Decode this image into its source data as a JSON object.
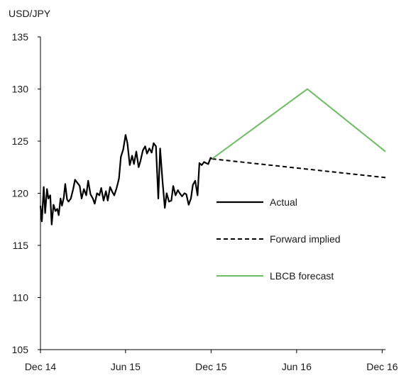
{
  "chart_data": {
    "type": "line",
    "unit_label": "USD/JPY",
    "y_ticks": [
      "135",
      "130",
      "125",
      "120",
      "115",
      "110",
      "105"
    ],
    "y_tick_values": [
      135,
      130,
      125,
      120,
      115,
      110,
      105
    ],
    "ylim": [
      105,
      135
    ],
    "x_ticks": [
      "Dec 14",
      "Jun 15",
      "Dec 15",
      "Jun 16",
      "Dec 16"
    ],
    "x_tick_dates": [
      "2014-12-01",
      "2015-06-01",
      "2015-12-01",
      "2016-06-01",
      "2016-12-01"
    ],
    "xlim": [
      "2014-12-01",
      "2016-12-08"
    ],
    "grid": false,
    "legend_position": "right-center",
    "series": [
      {
        "name": "Actual",
        "style": "solid",
        "color": "#000000",
        "x": [
          "2014-12-01",
          "2014-12-04",
          "2014-12-08",
          "2014-12-11",
          "2014-12-15",
          "2014-12-18",
          "2014-12-22",
          "2014-12-25",
          "2014-12-29",
          "2015-01-02",
          "2015-01-06",
          "2015-01-09",
          "2015-01-13",
          "2015-01-16",
          "2015-01-20",
          "2015-01-23",
          "2015-01-27",
          "2015-01-30",
          "2015-02-04",
          "2015-02-09",
          "2015-02-13",
          "2015-02-18",
          "2015-02-23",
          "2015-02-27",
          "2015-03-04",
          "2015-03-09",
          "2015-03-13",
          "2015-03-18",
          "2015-03-23",
          "2015-03-27",
          "2015-04-01",
          "2015-04-06",
          "2015-04-10",
          "2015-04-15",
          "2015-04-20",
          "2015-04-24",
          "2015-04-29",
          "2015-05-04",
          "2015-05-08",
          "2015-05-13",
          "2015-05-18",
          "2015-05-22",
          "2015-05-27",
          "2015-06-01",
          "2015-06-05",
          "2015-06-10",
          "2015-06-15",
          "2015-06-19",
          "2015-06-24",
          "2015-06-29",
          "2015-07-03",
          "2015-07-08",
          "2015-07-13",
          "2015-07-17",
          "2015-07-22",
          "2015-07-27",
          "2015-07-31",
          "2015-08-05",
          "2015-08-10",
          "2015-08-14",
          "2015-08-19",
          "2015-08-24",
          "2015-08-28",
          "2015-09-02",
          "2015-09-07",
          "2015-09-11",
          "2015-09-16",
          "2015-09-21",
          "2015-09-25",
          "2015-09-30",
          "2015-10-05",
          "2015-10-09",
          "2015-10-14",
          "2015-10-19",
          "2015-10-23",
          "2015-10-28",
          "2015-11-02",
          "2015-11-06",
          "2015-11-11",
          "2015-11-16",
          "2015-11-20",
          "2015-11-25",
          "2015-11-30",
          "2015-12-03"
        ],
        "values": [
          118.8,
          117.3,
          120.6,
          118.1,
          120.4,
          119.5,
          119.8,
          117.0,
          118.9,
          118.3,
          118.5,
          117.9,
          119.5,
          118.8,
          119.6,
          120.9,
          119.4,
          119.2,
          119.5,
          120.4,
          121.3,
          121.0,
          120.7,
          119.5,
          120.4,
          119.8,
          121.2,
          119.9,
          119.5,
          119.0,
          120.0,
          119.8,
          120.5,
          119.3,
          120.2,
          119.3,
          120.6,
          120.1,
          119.8,
          120.5,
          121.4,
          123.5,
          124.2,
          125.6,
          124.8,
          122.7,
          123.6,
          122.8,
          124.0,
          122.5,
          123.1,
          124.1,
          124.5,
          123.8,
          124.3,
          123.9,
          124.8,
          124.5,
          119.5,
          124.3,
          121.2,
          118.6,
          120.0,
          119.2,
          119.3,
          120.7,
          119.8,
          120.3,
          120.0,
          119.7,
          120.0,
          119.9,
          118.9,
          119.5,
          120.8,
          121.2,
          119.8,
          122.9,
          122.7,
          123.0,
          122.9,
          122.8,
          123.4,
          123.3
        ]
      },
      {
        "name": "Forward implied",
        "style": "dashed",
        "color": "#000000",
        "x": [
          "2015-12-03",
          "2016-12-08"
        ],
        "values": [
          123.3,
          121.5
        ]
      },
      {
        "name": "LBCB forecast",
        "style": "solid",
        "color": "#6dbb63",
        "x": [
          "2015-12-03",
          "2016-06-24",
          "2016-12-08"
        ],
        "values": [
          123.3,
          130.0,
          124.0
        ]
      }
    ]
  }
}
